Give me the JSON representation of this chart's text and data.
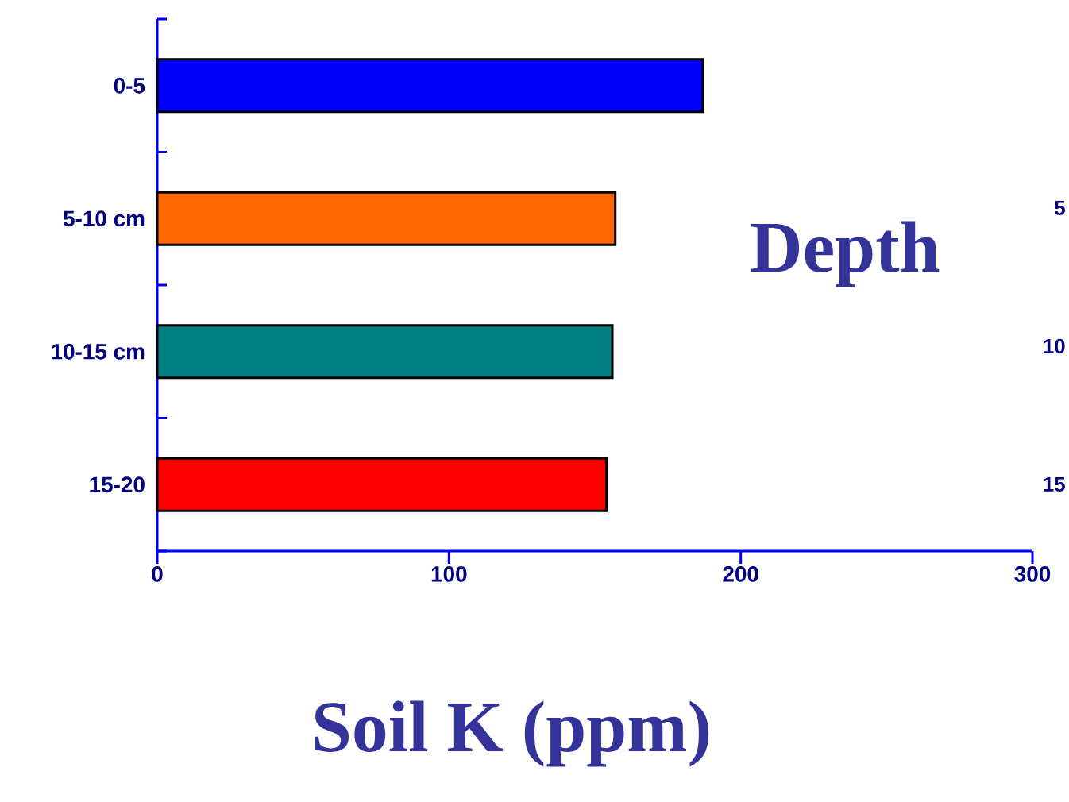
{
  "chart_data": {
    "type": "bar",
    "orientation": "horizontal",
    "xlabel": "Soil K (ppm)",
    "ylabel": "Depth",
    "categories": [
      "0-5",
      "5-10 cm",
      "10-15 cm",
      "15-20"
    ],
    "values": [
      187,
      157,
      156,
      154
    ],
    "colors": [
      "#0000ff",
      "#ff6600",
      "#008080",
      "#ff0000"
    ],
    "xlim": [
      0,
      300
    ],
    "xticks": [
      0,
      100,
      200,
      300
    ],
    "annotations": [
      "5",
      "10",
      "15"
    ]
  }
}
